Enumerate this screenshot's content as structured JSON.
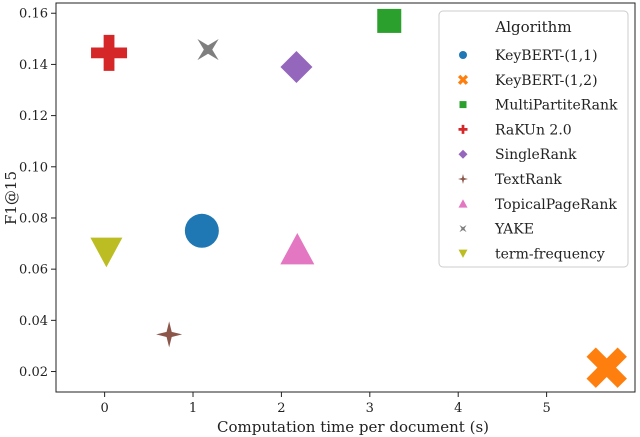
{
  "chart_data": {
    "type": "scatter",
    "xlabel": "Computation time per document (s)",
    "ylabel": "F1@15",
    "xlim": [
      -0.55,
      6.0
    ],
    "ylim": [
      0.012,
      0.164
    ],
    "xticks": [
      0,
      1,
      2,
      3,
      4,
      5
    ],
    "yticks": [
      0.02,
      0.04,
      0.06,
      0.08,
      0.1,
      0.12,
      0.14,
      0.16
    ],
    "grid": false,
    "legend": {
      "title": "Algorithm",
      "placement": "top-right"
    },
    "series": [
      {
        "name": "KeyBERT-(1,1)",
        "x": 1.1,
        "y": 0.075,
        "marker": "circle",
        "color": "#1f77b4"
      },
      {
        "name": "KeyBERT-(1,2)",
        "x": 5.68,
        "y": 0.0215,
        "marker": "x",
        "color": "#ff7f0e"
      },
      {
        "name": "MultiPartiteRank",
        "x": 3.22,
        "y": 0.157,
        "marker": "square",
        "color": "#2ca02c"
      },
      {
        "name": "RaKUn 2.0",
        "x": 0.05,
        "y": 0.1445,
        "marker": "plus",
        "color": "#d62728"
      },
      {
        "name": "SingleRank",
        "x": 2.17,
        "y": 0.139,
        "marker": "diamond",
        "color": "#9467bd"
      },
      {
        "name": "TextRank",
        "x": 0.73,
        "y": 0.0345,
        "marker": "star4",
        "color": "#8c564b"
      },
      {
        "name": "TopicalPageRank",
        "x": 2.18,
        "y": 0.0675,
        "marker": "triangle-up",
        "color": "#e377c2"
      },
      {
        "name": "YAKE",
        "x": 1.17,
        "y": 0.1458,
        "marker": "star4-x",
        "color": "#7f7f7f"
      },
      {
        "name": "term-frequency",
        "x": 0.02,
        "y": 0.067,
        "marker": "triangle-down",
        "color": "#bcbd22"
      }
    ]
  }
}
